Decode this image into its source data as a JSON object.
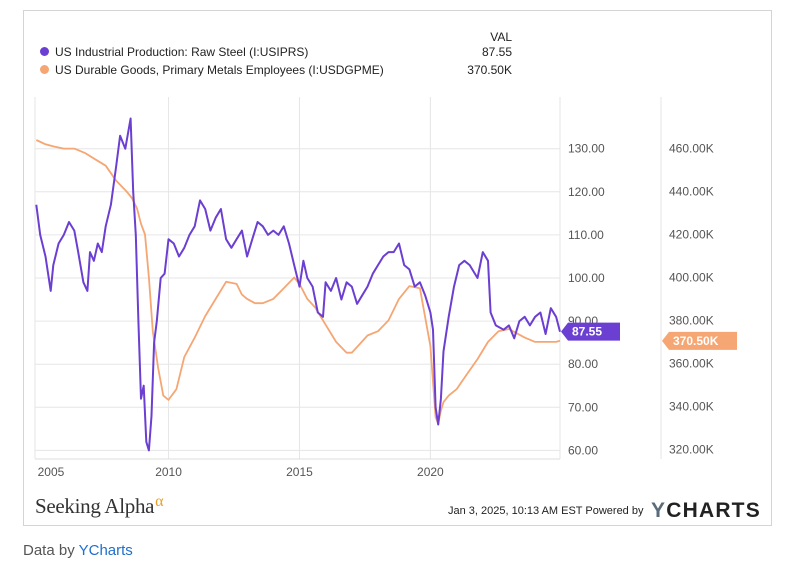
{
  "header": {
    "val_label": "VAL"
  },
  "legend": [
    {
      "name": "US Industrial Production: Raw Steel (I:USIPRS)",
      "value": "87.55",
      "color": "#6b3fd1"
    },
    {
      "name": "US Durable Goods, Primary Metals Employees (I:USDGPME)",
      "value": "370.50K",
      "color": "#f5a673"
    }
  ],
  "footer": {
    "brand_text": "Seeking Alpha",
    "brand_mark": "α",
    "timestamp": "Jan 3, 2025, 10:13 AM EST Powered by",
    "ycharts_y": "Y",
    "ycharts_rest": "CHARTS",
    "data_by_prefix": "Data by",
    "data_by_link": "YCharts"
  },
  "chart_data": {
    "type": "line",
    "x_ticks": [
      "2005",
      "2010",
      "2015",
      "2020"
    ],
    "xlim": [
      2004.9,
      2024.95
    ],
    "left_axis": {
      "ticks": [
        "130.00",
        "120.00",
        "110.00",
        "100.00",
        "90.00",
        "80.00",
        "70.00",
        "60.00"
      ],
      "ylim": [
        58,
        142
      ]
    },
    "right_axis": {
      "ticks": [
        "460.00K",
        "440.00K",
        "420.00K",
        "400.00K",
        "380.00K",
        "360.00K",
        "340.00K",
        "320.00K"
      ],
      "ylim": [
        315.5,
        484
      ]
    },
    "last_value_badges": [
      "87.55",
      "370.50K"
    ],
    "grid": true,
    "series": [
      {
        "name": "US Industrial Production: Raw Steel (I:USIPRS)",
        "axis": "left",
        "color": "#6b3fd1",
        "x": [
          2004.95,
          2005.1,
          2005.3,
          2005.5,
          2005.6,
          2005.8,
          2006.0,
          2006.2,
          2006.4,
          2006.55,
          2006.75,
          2006.9,
          2007.0,
          2007.15,
          2007.3,
          2007.45,
          2007.6,
          2007.8,
          2008.0,
          2008.15,
          2008.35,
          2008.55,
          2008.65,
          2008.75,
          2008.85,
          2008.95,
          2009.05,
          2009.15,
          2009.25,
          2009.35,
          2009.45,
          2009.55,
          2009.7,
          2009.85,
          2010.0,
          2010.2,
          2010.4,
          2010.6,
          2010.8,
          2011.0,
          2011.2,
          2011.4,
          2011.6,
          2011.8,
          2012.0,
          2012.2,
          2012.4,
          2012.6,
          2012.8,
          2013.0,
          2013.2,
          2013.4,
          2013.6,
          2013.8,
          2014.0,
          2014.2,
          2014.4,
          2014.6,
          2014.8,
          2015.0,
          2015.15,
          2015.3,
          2015.5,
          2015.7,
          2015.9,
          2016.0,
          2016.2,
          2016.4,
          2016.6,
          2016.8,
          2017.0,
          2017.2,
          2017.4,
          2017.6,
          2017.8,
          2018.0,
          2018.2,
          2018.4,
          2018.6,
          2018.8,
          2019.0,
          2019.2,
          2019.4,
          2019.6,
          2019.8,
          2020.0,
          2020.1,
          2020.2,
          2020.3,
          2020.4,
          2020.5,
          2020.7,
          2020.9,
          2021.1,
          2021.3,
          2021.5,
          2021.8,
          2022.0,
          2022.2,
          2022.3,
          2022.5,
          2022.8,
          2023.0,
          2023.2,
          2023.4,
          2023.6,
          2023.8,
          2024.0,
          2024.2,
          2024.4,
          2024.6,
          2024.8,
          2024.95
        ],
        "y": [
          117,
          110,
          105,
          97,
          103,
          108,
          110,
          113,
          111,
          106,
          99,
          97,
          106,
          104,
          108,
          106,
          112,
          117,
          126,
          133,
          130,
          137,
          120,
          110,
          90,
          72,
          75,
          62,
          60,
          68,
          85,
          90,
          100,
          101,
          109,
          108,
          105,
          107,
          110,
          112,
          118,
          116,
          111,
          114,
          116,
          109,
          107,
          109,
          111,
          105,
          109,
          113,
          112,
          110,
          111,
          110,
          112,
          108,
          103,
          98,
          104,
          100,
          98,
          92,
          91,
          99,
          97,
          100,
          95,
          99,
          98,
          94,
          96,
          98,
          101,
          103,
          105,
          106,
          106,
          108,
          103,
          102,
          98,
          99,
          96,
          92,
          88,
          70,
          66,
          72,
          83,
          91,
          98,
          103,
          104,
          103,
          100,
          106,
          104,
          92,
          89,
          88,
          89,
          86,
          90,
          91,
          89,
          91,
          92,
          87,
          93,
          91,
          87.55
        ]
      },
      {
        "name": "US Durable Goods, Primary Metals Employees (I:USDGPME)",
        "axis": "right",
        "color": "#f5a673",
        "x": [
          2004.95,
          2005.3,
          2005.6,
          2006.0,
          2006.4,
          2006.8,
          2007.2,
          2007.6,
          2008.0,
          2008.4,
          2008.6,
          2008.8,
          2008.95,
          2009.1,
          2009.25,
          2009.4,
          2009.6,
          2009.8,
          2010.0,
          2010.3,
          2010.6,
          2011.0,
          2011.4,
          2011.8,
          2012.2,
          2012.6,
          2012.8,
          2013.0,
          2013.3,
          2013.6,
          2014.0,
          2014.4,
          2014.8,
          2015.0,
          2015.3,
          2015.6,
          2016.0,
          2016.4,
          2016.8,
          2017.0,
          2017.3,
          2017.6,
          2018.0,
          2018.4,
          2018.8,
          2019.2,
          2019.6,
          2020.0,
          2020.2,
          2020.3,
          2020.4,
          2020.5,
          2020.7,
          2021.0,
          2021.4,
          2021.8,
          2022.2,
          2022.6,
          2023.0,
          2023.3,
          2023.6,
          2024.0,
          2024.4,
          2024.8,
          2024.95
        ],
        "y": [
          464,
          462,
          461,
          460,
          460,
          458,
          455,
          452,
          445,
          440,
          437,
          432,
          425,
          420,
          400,
          375,
          358,
          345,
          343,
          348,
          363,
          372,
          382,
          390,
          398,
          397,
          392,
          390,
          388,
          388,
          390,
          395,
          400,
          397,
          390,
          386,
          378,
          370,
          365,
          365,
          369,
          373,
          375,
          380,
          390,
          396,
          395,
          368,
          335,
          332,
          338,
          342,
          345,
          348,
          355,
          362,
          370,
          375,
          376,
          374,
          372,
          370,
          370,
          370,
          370.5
        ]
      }
    ]
  }
}
